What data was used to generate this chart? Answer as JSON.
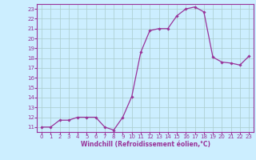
{
  "x": [
    0,
    1,
    2,
    3,
    4,
    5,
    6,
    7,
    8,
    9,
    10,
    11,
    12,
    13,
    14,
    15,
    16,
    17,
    18,
    19,
    20,
    21,
    22,
    23
  ],
  "y": [
    11,
    11,
    11.7,
    11.7,
    12,
    12,
    12,
    11,
    10.7,
    12,
    14.1,
    18.6,
    20.8,
    21,
    21,
    22.3,
    23.0,
    23.2,
    22.7,
    18.1,
    17.6,
    17.5,
    17.3,
    18.2
  ],
  "line_color": "#993399",
  "marker": "D",
  "markersize": 1.8,
  "linewidth": 0.9,
  "bg_color": "#cceeff",
  "grid_color": "#aacccc",
  "xlabel": "Windchill (Refroidissement éolien,°C)",
  "ylim": [
    10.5,
    23.5
  ],
  "xlim": [
    -0.5,
    23.5
  ],
  "yticks": [
    11,
    12,
    13,
    14,
    15,
    16,
    17,
    18,
    19,
    20,
    21,
    22,
    23
  ],
  "xticks": [
    0,
    1,
    2,
    3,
    4,
    5,
    6,
    7,
    8,
    9,
    10,
    11,
    12,
    13,
    14,
    15,
    16,
    17,
    18,
    19,
    20,
    21,
    22,
    23
  ],
  "tick_fontsize": 5.0,
  "xlabel_fontsize": 5.5,
  "spine_color": "#993399"
}
